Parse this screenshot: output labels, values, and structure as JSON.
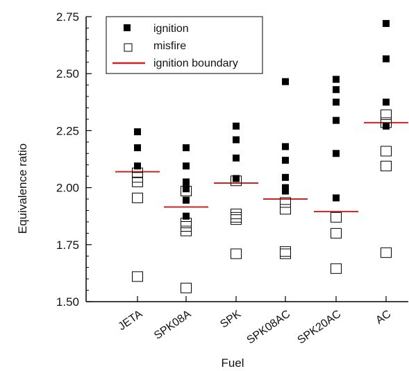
{
  "chart_data": {
    "type": "scatter",
    "xlabel": "Fuel",
    "ylabel": "Equivalence ratio",
    "categories": [
      "JETA",
      "SPK08A",
      "SPK",
      "SPK08AC",
      "SPK20AC",
      "AC"
    ],
    "ylim": [
      1.5,
      2.75
    ],
    "yticks": [
      1.5,
      1.75,
      2.0,
      2.25,
      2.5,
      2.75
    ],
    "ytick_labels": [
      "1.50",
      "1.75",
      "2.00",
      "2.25",
      "2.50",
      "2.75"
    ],
    "grid": false,
    "legend": {
      "position": "top-left",
      "entries": [
        {
          "label": "ignition",
          "marker": "filled-square"
        },
        {
          "label": "misfire",
          "marker": "open-square"
        },
        {
          "label": "ignition boundary",
          "marker": "line"
        }
      ]
    },
    "colors": {
      "ignition": "#000000",
      "misfire": "#000000",
      "boundary": "#cc2222"
    },
    "series": [
      {
        "name": "ignition",
        "points": [
          {
            "x": "JETA",
            "y": 2.245
          },
          {
            "x": "JETA",
            "y": 2.175
          },
          {
            "x": "JETA",
            "y": 2.095
          },
          {
            "x": "SPK08A",
            "y": 2.175
          },
          {
            "x": "SPK08A",
            "y": 2.095
          },
          {
            "x": "SPK08A",
            "y": 2.025
          },
          {
            "x": "SPK08A",
            "y": 1.995
          },
          {
            "x": "SPK08A",
            "y": 1.945
          },
          {
            "x": "SPK08A",
            "y": 1.875
          },
          {
            "x": "SPK",
            "y": 2.27
          },
          {
            "x": "SPK",
            "y": 2.21
          },
          {
            "x": "SPK",
            "y": 2.13
          },
          {
            "x": "SPK",
            "y": 2.04
          },
          {
            "x": "SPK08AC",
            "y": 2.465
          },
          {
            "x": "SPK08AC",
            "y": 2.18
          },
          {
            "x": "SPK08AC",
            "y": 2.12
          },
          {
            "x": "SPK08AC",
            "y": 2.045
          },
          {
            "x": "SPK08AC",
            "y": 2.0
          },
          {
            "x": "SPK08AC",
            "y": 1.985
          },
          {
            "x": "SPK20AC",
            "y": 2.475
          },
          {
            "x": "SPK20AC",
            "y": 2.43
          },
          {
            "x": "SPK20AC",
            "y": 2.375
          },
          {
            "x": "SPK20AC",
            "y": 2.295
          },
          {
            "x": "SPK20AC",
            "y": 2.15
          },
          {
            "x": "SPK20AC",
            "y": 1.955
          },
          {
            "x": "AC",
            "y": 2.72
          },
          {
            "x": "AC",
            "y": 2.565
          },
          {
            "x": "AC",
            "y": 2.375
          },
          {
            "x": "AC",
            "y": 2.27
          }
        ]
      },
      {
        "name": "misfire",
        "points": [
          {
            "x": "JETA",
            "y": 2.065
          },
          {
            "x": "JETA",
            "y": 2.045
          },
          {
            "x": "JETA",
            "y": 2.025
          },
          {
            "x": "JETA",
            "y": 1.955
          },
          {
            "x": "JETA",
            "y": 1.61
          },
          {
            "x": "SPK08A",
            "y": 1.985
          },
          {
            "x": "SPK08A",
            "y": 1.845
          },
          {
            "x": "SPK08A",
            "y": 1.83
          },
          {
            "x": "SPK08A",
            "y": 1.81
          },
          {
            "x": "SPK08A",
            "y": 1.56
          },
          {
            "x": "SPK",
            "y": 2.03
          },
          {
            "x": "SPK",
            "y": 1.885
          },
          {
            "x": "SPK",
            "y": 1.87
          },
          {
            "x": "SPK",
            "y": 1.86
          },
          {
            "x": "SPK",
            "y": 1.71
          },
          {
            "x": "SPK08AC",
            "y": 1.935
          },
          {
            "x": "SPK08AC",
            "y": 1.905
          },
          {
            "x": "SPK08AC",
            "y": 1.72
          },
          {
            "x": "SPK08AC",
            "y": 1.71
          },
          {
            "x": "SPK20AC",
            "y": 1.87
          },
          {
            "x": "SPK20AC",
            "y": 1.8
          },
          {
            "x": "SPK20AC",
            "y": 1.645
          },
          {
            "x": "AC",
            "y": 2.32
          },
          {
            "x": "AC",
            "y": 2.285
          },
          {
            "x": "AC",
            "y": 2.16
          },
          {
            "x": "AC",
            "y": 2.095
          },
          {
            "x": "AC",
            "y": 1.715
          }
        ]
      },
      {
        "name": "ignition boundary",
        "values": [
          {
            "x": "JETA",
            "y": 2.07
          },
          {
            "x": "SPK08A",
            "y": 1.915
          },
          {
            "x": "SPK",
            "y": 2.02
          },
          {
            "x": "SPK08AC",
            "y": 1.95
          },
          {
            "x": "SPK20AC",
            "y": 1.895
          },
          {
            "x": "AC",
            "y": 2.285
          }
        ]
      }
    ]
  }
}
